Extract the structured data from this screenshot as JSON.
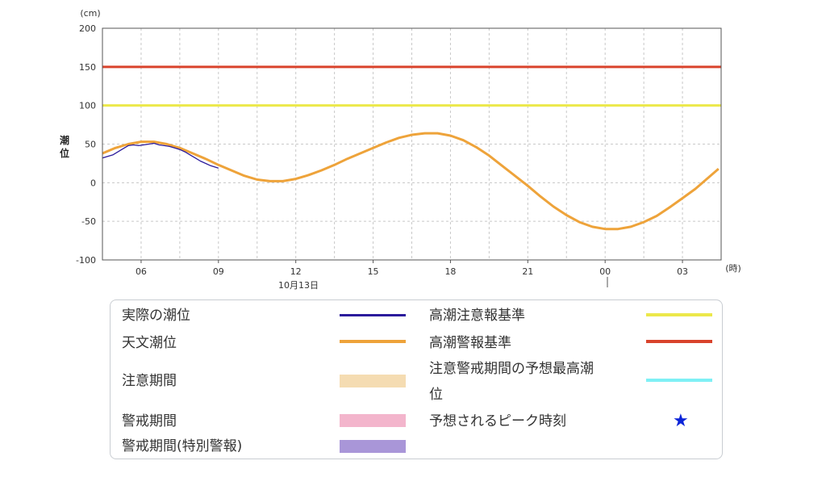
{
  "chart_data": {
    "type": "line",
    "y_unit": "(cm)",
    "x_unit": "(時)",
    "ylabel": "潮位",
    "ylim": [
      -100,
      200
    ],
    "y_ticks": [
      "200",
      "150",
      "100",
      "50",
      "0",
      "-50",
      "-100"
    ],
    "x_ticks": [
      "06",
      "09",
      "12",
      "15",
      "18",
      "21",
      "00",
      "03"
    ],
    "date_label": "10月13日",
    "grid": true,
    "thresholds": [
      {
        "name": "高潮注意報基準",
        "value": 100,
        "color": "#ece84a"
      },
      {
        "name": "高潮警報基準",
        "value": 150,
        "color": "#d9432c"
      }
    ],
    "series": [
      {
        "name": "天文潮位",
        "color": "#eea33a",
        "x_hours": [
          4.5,
          5,
          5.5,
          6,
          6.5,
          7,
          7.5,
          8,
          8.5,
          9,
          9.5,
          10,
          10.5,
          11,
          11.5,
          12,
          12.5,
          13,
          13.5,
          14,
          14.5,
          15,
          15.5,
          16,
          16.5,
          17,
          17.5,
          18,
          18.5,
          19,
          19.5,
          20,
          20.5,
          21,
          21.5,
          22,
          22.5,
          23,
          23.5,
          24,
          24.5,
          25,
          25.5,
          26,
          26.5,
          27,
          27.5,
          28.4
        ],
        "values": [
          38,
          45,
          50,
          53,
          53,
          50,
          45,
          38,
          31,
          23,
          16,
          9,
          4,
          2,
          2,
          5,
          10,
          16,
          23,
          31,
          38,
          45,
          52,
          58,
          62,
          64,
          64,
          61,
          55,
          46,
          35,
          22,
          9,
          -4,
          -18,
          -31,
          -42,
          -51,
          -57,
          -60,
          -60,
          -57,
          -51,
          -43,
          -32,
          -20,
          -8,
          18
        ]
      },
      {
        "name": "実際の潮位",
        "color": "#2b1b9c",
        "x_hours": [
          4.5,
          4.7,
          4.9,
          5.1,
          5.3,
          5.5,
          5.7,
          5.9,
          6.1,
          6.3,
          6.5,
          6.7,
          6.9,
          7.1,
          7.3,
          7.5,
          7.7,
          7.9,
          8.1,
          8.3,
          8.5,
          8.7,
          8.9,
          9.0
        ],
        "values": [
          32,
          34,
          36,
          40,
          44,
          48,
          49,
          48,
          49,
          50,
          51,
          49,
          48,
          47,
          45,
          43,
          40,
          36,
          32,
          28,
          25,
          22,
          20,
          19
        ]
      }
    ]
  },
  "legend": {
    "actual": "実際の潮位",
    "astronomical": "天文潮位",
    "caution_period": "注意期間",
    "warning_period": "警戒期間",
    "special_warning_period": "警戒期間(特別警報)",
    "advisory_standard": "高潮注意報基準",
    "warning_standard": "高潮警報基準",
    "forecast_max_line1": "注意警戒期間の予想最高潮",
    "forecast_max_line2": "位",
    "peak_time": "予想されるピーク時刻",
    "colors": {
      "actual": "#2b1b9c",
      "astronomical": "#eea33a",
      "caution_period": "#f5dcb2",
      "warning_period": "#f3b5cc",
      "special_warning_period": "#a996d8",
      "advisory_standard": "#ece84a",
      "warning_standard": "#d9432c",
      "forecast_max": "#7ff0f5",
      "peak_star": "#0b24d8"
    }
  }
}
